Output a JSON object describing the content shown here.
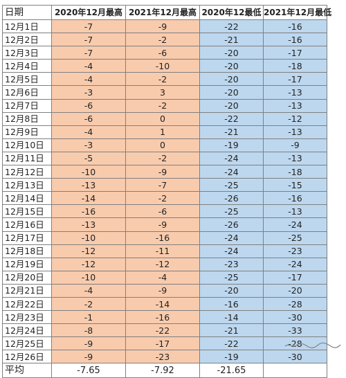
{
  "table": {
    "headers": [
      "日期",
      "2020年12月最高",
      "2021年12月最高",
      "2020年12最低",
      "2021年12月最低"
    ],
    "rows": [
      [
        "12月1日",
        "-7",
        "-9",
        "-22",
        "-16"
      ],
      [
        "12月2日",
        "-7",
        "-2",
        "-21",
        "-16"
      ],
      [
        "12月3日",
        "-7",
        "-6",
        "-20",
        "-17"
      ],
      [
        "12月4日",
        "-4",
        "-10",
        "-20",
        "-18"
      ],
      [
        "12月5日",
        "-4",
        "-2",
        "-20",
        "-17"
      ],
      [
        "12月6日",
        "-3",
        "3",
        "-20",
        "-13"
      ],
      [
        "12月7日",
        "-6",
        "-2",
        "-20",
        "-13"
      ],
      [
        "12月8日",
        "-6",
        "0",
        "-22",
        "-12"
      ],
      [
        "12月9日",
        "-4",
        "1",
        "-21",
        "-13"
      ],
      [
        "12月10日",
        "-3",
        "0",
        "-19",
        "-9"
      ],
      [
        "12月11日",
        "-5",
        "-2",
        "-24",
        "-13"
      ],
      [
        "12月12日",
        "-10",
        "-9",
        "-24",
        "-18"
      ],
      [
        "12月13日",
        "-13",
        "-7",
        "-25",
        "-15"
      ],
      [
        "12月14日",
        "-14",
        "-2",
        "-26",
        "-16"
      ],
      [
        "12月15日",
        "-16",
        "-6",
        "-25",
        "-13"
      ],
      [
        "12月16日",
        "-13",
        "-9",
        "-26",
        "-24"
      ],
      [
        "12月17日",
        "-10",
        "-16",
        "-24",
        "-25"
      ],
      [
        "12月18日",
        "-12",
        "-11",
        "-24",
        "-23"
      ],
      [
        "12月19日",
        "-12",
        "-12",
        "-23",
        "-24"
      ],
      [
        "12月20日",
        "-10",
        "-4",
        "-25",
        "-17"
      ],
      [
        "12月21日",
        "-4",
        "-9",
        "-20",
        "-20"
      ],
      [
        "12月22日",
        "-2",
        "-14",
        "-16",
        "-28"
      ],
      [
        "12月23日",
        "-1",
        "-16",
        "-14",
        "-30"
      ],
      [
        "12月24日",
        "-8",
        "-22",
        "-21",
        "-33"
      ],
      [
        "12月25日",
        "-9",
        "-17",
        "-22",
        "-28"
      ],
      [
        "12月26日",
        "-9",
        "-23",
        "-19",
        "-30"
      ]
    ],
    "footer": [
      "平均",
      "-7.65",
      "-7.92",
      "-21.65",
      ""
    ]
  },
  "colors": {
    "high_fill": "#f8cbad",
    "low_fill": "#bdd7ee",
    "border": "#7f7f7f"
  }
}
